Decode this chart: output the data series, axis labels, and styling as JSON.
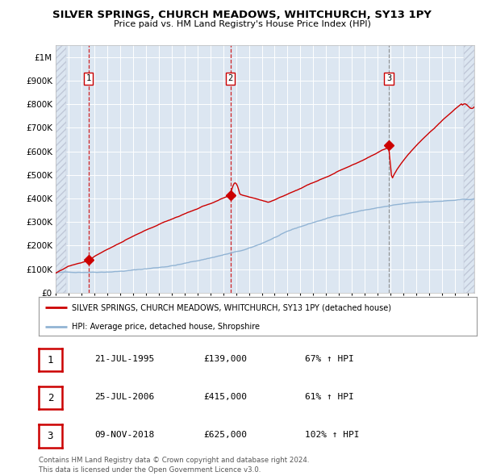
{
  "title": "SILVER SPRINGS, CHURCH MEADOWS, WHITCHURCH, SY13 1PY",
  "subtitle": "Price paid vs. HM Land Registry's House Price Index (HPI)",
  "background_color": "#ffffff",
  "plot_bg_color": "#dce6f1",
  "hpi_line_color": "#92b4d4",
  "price_line_color": "#cc0000",
  "ylim": [
    0,
    1050000
  ],
  "yticks": [
    0,
    100000,
    200000,
    300000,
    400000,
    500000,
    600000,
    700000,
    800000,
    900000,
    1000000
  ],
  "ytick_labels": [
    "£0",
    "£100K",
    "£200K",
    "£300K",
    "£400K",
    "£500K",
    "£600K",
    "£700K",
    "£800K",
    "£900K",
    "£1M"
  ],
  "xlim_start": 1993.0,
  "xlim_end": 2025.5,
  "sale_dates": [
    1995.55,
    2006.56,
    2018.86
  ],
  "sale_prices": [
    139000,
    415000,
    625000
  ],
  "sale_labels": [
    "1",
    "2",
    "3"
  ],
  "legend_property": "SILVER SPRINGS, CHURCH MEADOWS, WHITCHURCH, SY13 1PY (detached house)",
  "legend_hpi": "HPI: Average price, detached house, Shropshire",
  "table_entries": [
    {
      "num": "1",
      "date": "21-JUL-1995",
      "price": "£139,000",
      "pct": "67% ↑ HPI"
    },
    {
      "num": "2",
      "date": "25-JUL-2006",
      "price": "£415,000",
      "pct": "61% ↑ HPI"
    },
    {
      "num": "3",
      "date": "09-NOV-2018",
      "price": "£625,000",
      "pct": "102% ↑ HPI"
    }
  ],
  "footnote": "Contains HM Land Registry data © Crown copyright and database right 2024.\nThis data is licensed under the Open Government Licence v3.0."
}
